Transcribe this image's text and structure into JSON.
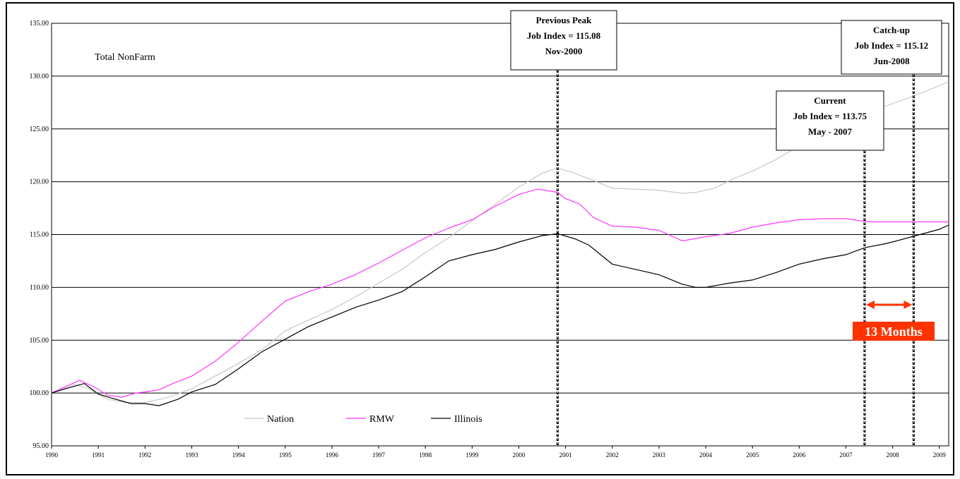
{
  "chart_data": {
    "type": "line",
    "title": "Total NonFarm",
    "xlabel": "",
    "ylabel": "",
    "ylim": [
      95,
      135
    ],
    "xlim": [
      1990,
      2009.2
    ],
    "yticks": [
      "95.00",
      "100.00",
      "105.00",
      "110.00",
      "115.00",
      "120.00",
      "125.00",
      "130.00",
      "135.00"
    ],
    "xticks": [
      "1990",
      "1991",
      "1992",
      "1993",
      "1994",
      "1995",
      "1996",
      "1997",
      "1998",
      "1999",
      "2000",
      "2001",
      "2002",
      "2003",
      "2004",
      "2005",
      "2006",
      "2007",
      "2008",
      "2009"
    ],
    "grid": true,
    "legend_position": "bottom-left",
    "series": [
      {
        "name": "Nation",
        "color": "#c8c8c8",
        "x": [
          1990.0,
          1990.5,
          1990.8,
          1991.2,
          1991.6,
          1992.0,
          1992.5,
          1993.0,
          1993.5,
          1994.0,
          1994.5,
          1995.0,
          1995.5,
          1996.0,
          1996.5,
          1997.0,
          1997.5,
          1998.0,
          1998.5,
          1999.0,
          1999.5,
          2000.0,
          2000.5,
          2000.83,
          2001.2,
          2001.6,
          2002.0,
          2002.5,
          2003.0,
          2003.5,
          2003.8,
          2004.2,
          2004.6,
          2005.0,
          2005.5,
          2006.0,
          2006.5,
          2007.0,
          2007.5,
          2008.0,
          2008.5,
          2009.0,
          2009.2
        ],
        "values": [
          100.0,
          100.8,
          100.4,
          99.4,
          99.1,
          99.1,
          99.6,
          100.4,
          101.6,
          102.8,
          104.1,
          105.9,
          106.9,
          107.9,
          109.1,
          110.4,
          111.7,
          113.3,
          114.7,
          116.3,
          117.9,
          119.5,
          120.8,
          121.3,
          120.8,
          120.1,
          119.4,
          119.3,
          119.2,
          118.9,
          119.0,
          119.4,
          120.3,
          121.0,
          122.1,
          123.4,
          124.6,
          125.7,
          126.6,
          127.4,
          128.2,
          129.1,
          129.5
        ]
      },
      {
        "name": "RMW",
        "color": "#ff33ff",
        "x": [
          1990.0,
          1990.3,
          1990.6,
          1990.9,
          1991.2,
          1991.5,
          1991.8,
          1992.0,
          1992.3,
          1992.6,
          1993.0,
          1993.5,
          1994.0,
          1994.5,
          1995.0,
          1995.5,
          1996.0,
          1996.5,
          1997.0,
          1997.5,
          1998.0,
          1998.5,
          1999.0,
          1999.5,
          2000.0,
          2000.4,
          2000.83,
          2001.0,
          2001.3,
          2001.6,
          2002.0,
          2002.5,
          2003.0,
          2003.5,
          2004.0,
          2004.5,
          2005.0,
          2005.5,
          2006.0,
          2006.5,
          2007.0,
          2007.3,
          2007.6,
          2008.0,
          2008.5,
          2009.0,
          2009.2
        ],
        "values": [
          100.0,
          100.6,
          101.2,
          100.6,
          99.8,
          99.6,
          100.0,
          100.1,
          100.3,
          100.9,
          101.6,
          103.0,
          104.8,
          106.8,
          108.7,
          109.6,
          110.3,
          111.2,
          112.3,
          113.5,
          114.7,
          115.6,
          116.4,
          117.7,
          118.8,
          119.3,
          119.0,
          118.4,
          117.9,
          116.6,
          115.8,
          115.7,
          115.4,
          114.4,
          114.8,
          115.1,
          115.7,
          116.1,
          116.4,
          116.5,
          116.5,
          116.3,
          116.2,
          116.2,
          116.2,
          116.2,
          116.2
        ]
      },
      {
        "name": "Illinois",
        "color": "#000000",
        "x": [
          1990.0,
          1990.3,
          1990.7,
          1991.0,
          1991.3,
          1991.7,
          1992.0,
          1992.3,
          1992.7,
          1993.0,
          1993.5,
          1994.0,
          1994.5,
          1995.0,
          1995.5,
          1996.0,
          1996.5,
          1997.0,
          1997.5,
          1998.0,
          1998.5,
          1999.0,
          1999.5,
          2000.0,
          2000.5,
          2000.83,
          2001.2,
          2001.5,
          2002.0,
          2002.5,
          2003.0,
          2003.5,
          2003.8,
          2004.0,
          2004.5,
          2005.0,
          2005.5,
          2006.0,
          2006.5,
          2007.0,
          2007.4,
          2007.8,
          2008.0,
          2008.5,
          2009.0,
          2009.2
        ],
        "values": [
          100.0,
          100.4,
          100.9,
          99.9,
          99.5,
          99.0,
          99.0,
          98.8,
          99.4,
          100.1,
          100.8,
          102.3,
          103.9,
          105.1,
          106.3,
          107.2,
          108.1,
          108.8,
          109.6,
          111.0,
          112.5,
          113.1,
          113.6,
          114.3,
          114.9,
          115.08,
          114.6,
          114.0,
          112.2,
          111.7,
          111.2,
          110.3,
          110.0,
          110.0,
          110.4,
          110.7,
          111.4,
          112.2,
          112.7,
          113.1,
          113.75,
          114.1,
          114.3,
          114.9,
          115.5,
          115.9
        ]
      }
    ],
    "annotations": [
      {
        "lines": [
          "Previous Peak",
          "Job Index = 115.08",
          "Nov-2000"
        ],
        "x": 2000.83
      },
      {
        "lines": [
          "Current",
          "Job Index = 113.75",
          "May - 2007"
        ],
        "x": 2007.4
      },
      {
        "lines": [
          "Catch-up",
          "Job Index = 115.12",
          "Jun-2008"
        ],
        "x": 2008.45
      }
    ],
    "span_label": "13 Months",
    "span_color": "#ff3300"
  }
}
